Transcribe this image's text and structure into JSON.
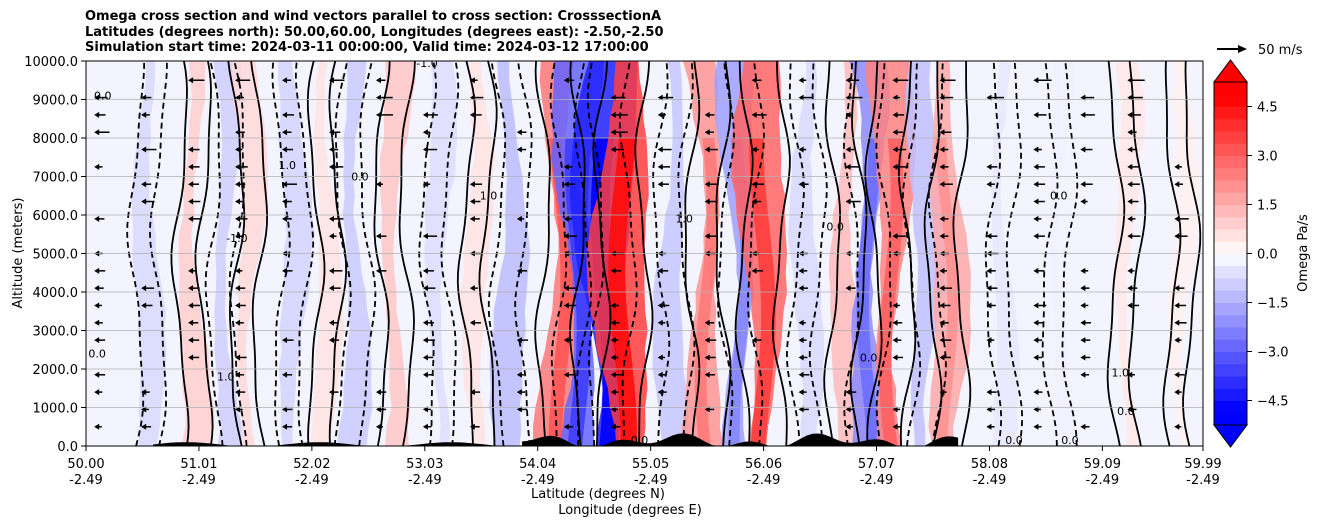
{
  "chart_data": {
    "type": "contour",
    "title_lines": [
      "Omega cross section and wind vectors parallel to cross section: CrosssectionA",
      "Latitudes (degrees north): 50.00,60.00, Longitudes (degrees east): -2.50,-2.50",
      "Simulation start time: 2024-03-11 00:00:00, Valid time: 2024-03-12 17:00:00"
    ],
    "xlabel_lines": [
      "Latitude (degrees N)",
      "Longitude (degrees E)"
    ],
    "ylabel": "Altitude (meters)",
    "xlim": [
      50.0,
      59.99
    ],
    "ylim": [
      0,
      10000
    ],
    "x_ticks": [
      {
        "lat": "50.00",
        "lon": "-2.49",
        "v": 50.0
      },
      {
        "lat": "51.01",
        "lon": "-2.49",
        "v": 51.01
      },
      {
        "lat": "52.02",
        "lon": "-2.49",
        "v": 52.02
      },
      {
        "lat": "53.03",
        "lon": "-2.49",
        "v": 53.03
      },
      {
        "lat": "54.04",
        "lon": "-2.49",
        "v": 54.04
      },
      {
        "lat": "55.05",
        "lon": "-2.49",
        "v": 55.05
      },
      {
        "lat": "56.06",
        "lon": "-2.49",
        "v": 56.06
      },
      {
        "lat": "57.07",
        "lon": "-2.49",
        "v": 57.07
      },
      {
        "lat": "58.08",
        "lon": "-2.49",
        "v": 58.08
      },
      {
        "lat": "59.09",
        "lon": "-2.49",
        "v": 59.09
      },
      {
        "lat": "59.99",
        "lon": "-2.49",
        "v": 59.99
      }
    ],
    "y_ticks": [
      {
        "label": "0.0",
        "v": 0
      },
      {
        "label": "1000.0",
        "v": 1000
      },
      {
        "label": "2000.0",
        "v": 2000
      },
      {
        "label": "3000.0",
        "v": 3000
      },
      {
        "label": "4000.0",
        "v": 4000
      },
      {
        "label": "5000.0",
        "v": 5000
      },
      {
        "label": "6000.0",
        "v": 6000
      },
      {
        "label": "7000.0",
        "v": 7000
      },
      {
        "label": "8000.0",
        "v": 8000
      },
      {
        "label": "9000.0",
        "v": 9000
      },
      {
        "label": "10000.0",
        "v": 10000
      }
    ],
    "grid": true,
    "colorbar": {
      "label": "Omega Pa/s",
      "range": [
        -5.25,
        5.25
      ],
      "levels_step": 0.375,
      "extend": "both",
      "ticks": [
        {
          "label": "4.5",
          "v": 4.5
        },
        {
          "label": "3.0",
          "v": 3.0
        },
        {
          "label": "1.5",
          "v": 1.5
        },
        {
          "label": "0.0",
          "v": 0.0
        },
        {
          "label": "−1.5",
          "v": -1.5
        },
        {
          "label": "−3.0",
          "v": -3.0
        },
        {
          "label": "−4.5",
          "v": -4.5
        }
      ],
      "colors": {
        "negative": "#0000ff",
        "positive": "#ff0000",
        "neutral": "#ffffff"
      }
    },
    "quiver_key": {
      "label": "50 m/s",
      "speed": 50
    },
    "omega_bands": [
      {
        "lat": 50.55,
        "val": -0.8
      },
      {
        "lat": 50.95,
        "val": 1.0
      },
      {
        "lat": 51.25,
        "val": -1.0
      },
      {
        "lat": 51.45,
        "val": 0.8
      },
      {
        "lat": 51.85,
        "val": -0.9
      },
      {
        "lat": 52.15,
        "val": 0.6
      },
      {
        "lat": 52.4,
        "val": -1.1
      },
      {
        "lat": 52.75,
        "val": 1.2
      },
      {
        "lat": 53.15,
        "val": -0.7
      },
      {
        "lat": 53.5,
        "val": 0.6
      },
      {
        "lat": 53.8,
        "val": -1.4
      },
      {
        "lat": 54.25,
        "val": 2.8
      },
      {
        "lat": 54.4,
        "val": -3.2
      },
      {
        "lat": 54.65,
        "val": -4.6
      },
      {
        "lat": 54.8,
        "val": 4.0
      },
      {
        "lat": 55.25,
        "val": -1.2
      },
      {
        "lat": 55.55,
        "val": 2.2
      },
      {
        "lat": 55.85,
        "val": -2.0
      },
      {
        "lat": 56.05,
        "val": 3.2
      },
      {
        "lat": 56.45,
        "val": -0.8
      },
      {
        "lat": 56.8,
        "val": 1.4
      },
      {
        "lat": 57.0,
        "val": -2.4
      },
      {
        "lat": 57.2,
        "val": 2.6
      },
      {
        "lat": 57.5,
        "val": -1.3
      },
      {
        "lat": 57.7,
        "val": 1.8
      },
      {
        "lat": 58.2,
        "val": -0.5
      },
      {
        "lat": 58.7,
        "val": -0.3
      },
      {
        "lat": 59.3,
        "val": 0.5
      },
      {
        "lat": 59.8,
        "val": 0.3
      }
    ],
    "contour_labels": [
      {
        "text": "-1.0",
        "lat": 53.05,
        "alt": 9850
      },
      {
        "text": "-1.0",
        "lat": 51.35,
        "alt": 5300
      },
      {
        "text": "0.0",
        "lat": 58.7,
        "alt": 6400
      },
      {
        "text": "0.0",
        "lat": 56.7,
        "alt": 5600
      },
      {
        "text": "1.0",
        "lat": 59.25,
        "alt": 1800
      },
      {
        "text": "0.0",
        "lat": 50.1,
        "alt": 2300
      },
      {
        "text": "1.0",
        "lat": 53.6,
        "alt": 6400
      },
      {
        "text": "0.0",
        "lat": 58.3,
        "alt": 50
      },
      {
        "text": "0.0",
        "lat": 58.8,
        "alt": 50
      },
      {
        "text": "0.0",
        "lat": 54.95,
        "alt": 50
      },
      {
        "text": "1.0",
        "lat": 51.25,
        "alt": 1700
      },
      {
        "text": "1.0",
        "lat": 55.35,
        "alt": 5800
      },
      {
        "text": "0.0",
        "lat": 50.15,
        "alt": 9000
      },
      {
        "text": "1.0",
        "lat": 51.8,
        "alt": 7200
      },
      {
        "text": "0.0",
        "lat": 52.45,
        "alt": 6900
      },
      {
        "text": "0.0",
        "lat": 59.3,
        "alt": 800
      },
      {
        "text": "0.0",
        "lat": 57.0,
        "alt": 2200
      }
    ]
  }
}
